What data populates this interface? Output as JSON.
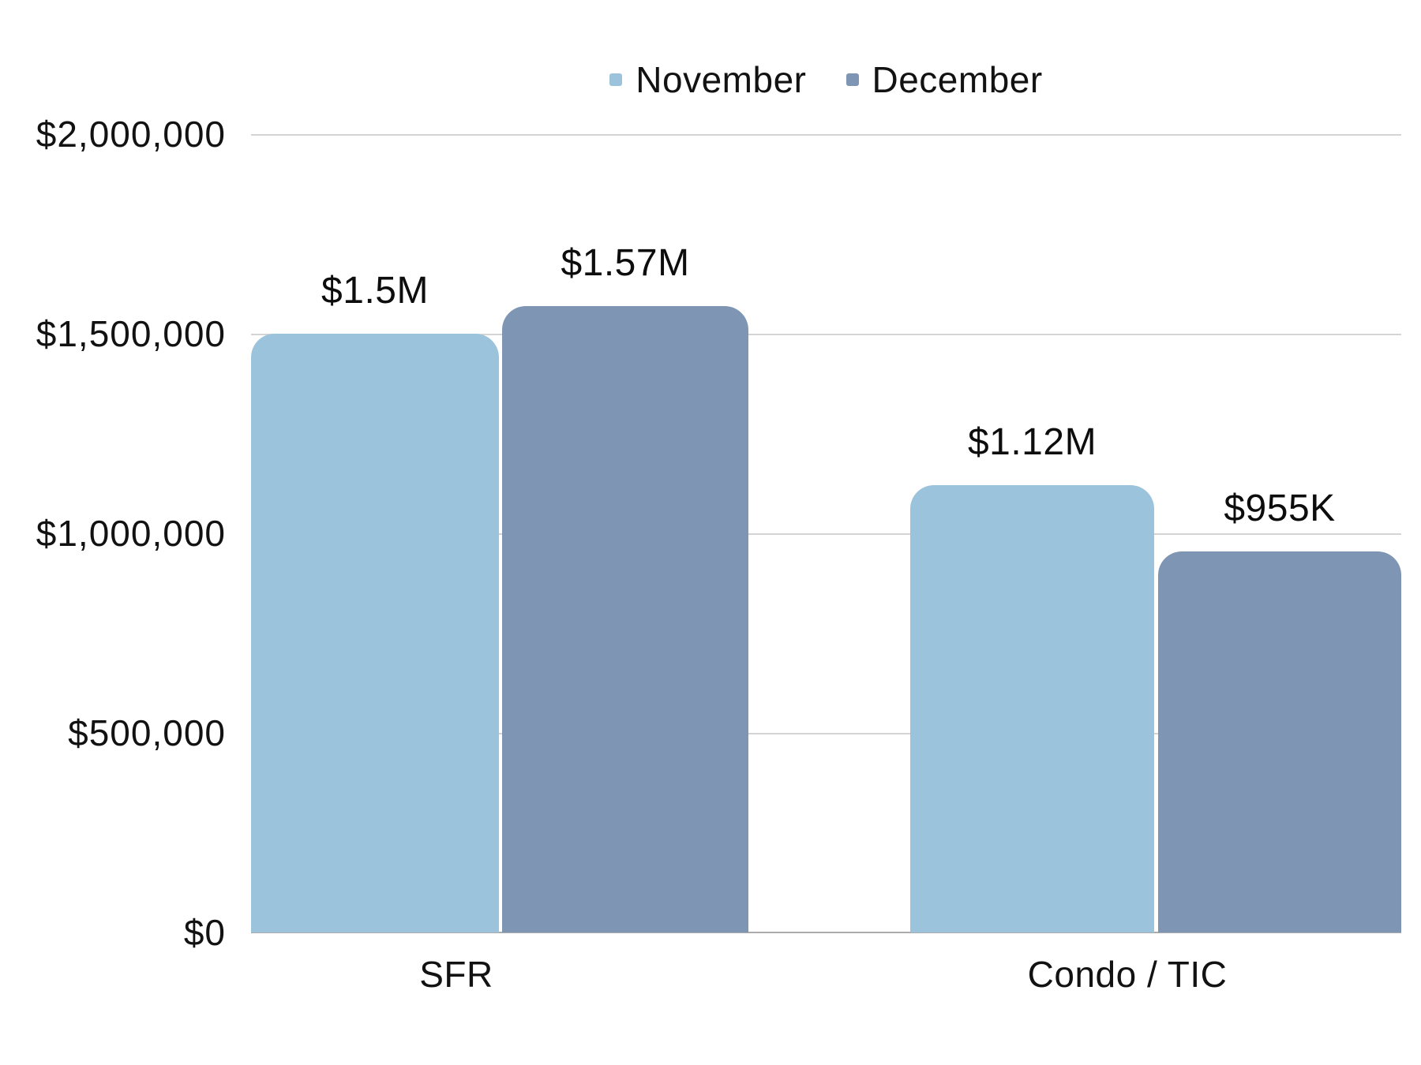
{
  "chart_data": {
    "type": "bar",
    "title": "",
    "categories": [
      "SFR",
      "Condo / TIC"
    ],
    "series": [
      {
        "name": "November",
        "color": "#9cc3dc",
        "values": [
          1500000,
          1120000
        ],
        "value_labels": [
          "$1.5M",
          "$1.12M"
        ]
      },
      {
        "name": "December",
        "color": "#7e96b4",
        "values": [
          1570000,
          955000
        ],
        "value_labels": [
          "$1.57M",
          "$955K"
        ]
      }
    ],
    "xlabel": "",
    "ylabel": "",
    "ylim": [
      0,
      2000000
    ],
    "ytick_labels": [
      "$2,000,000",
      "$1,500,000",
      "$1,000,000",
      "$500,000",
      "$0"
    ],
    "grid": true,
    "legend_position": "top-center",
    "bar_style": "rounded-top"
  },
  "colors": {
    "background": "#ffffff",
    "november": "#9cc3dc",
    "december": "#7e96b4",
    "gridline": "#d4d4d4",
    "baseline": "#ababab",
    "text": "#111111"
  }
}
